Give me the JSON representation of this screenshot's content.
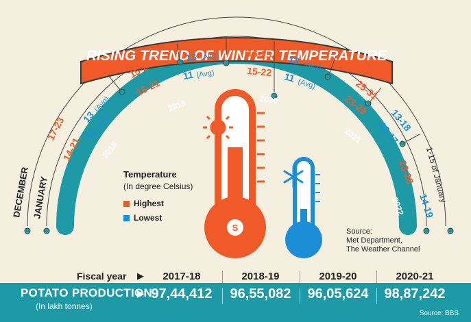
{
  "title": "RISING TREND OF WINTER TEMPERATURE",
  "arc_labels": {
    "years": [
      "2018",
      "2019",
      "2020",
      "2021",
      "2022"
    ],
    "month_labels": [
      "DECEMBER",
      "JANUARY",
      "1-15 of January"
    ],
    "december": [
      {
        "range": "17-23",
        "avg": "13",
        "avg_label": "(Avg)"
      },
      {
        "range": "15-24",
        "avg": "13",
        "avg_label": "(Avg)"
      },
      {
        "range": "16-25",
        "avg": "13",
        "avg_label": "(Avg)"
      },
      {
        "range": "25-31",
        "avg": "13-18",
        "avg_label": ""
      }
    ],
    "january": [
      {
        "range": "14-21",
        "avg": "11",
        "avg_label": "(Avg)"
      },
      {
        "range": "16-21",
        "avg": "11",
        "avg_label": "(Avg)"
      },
      {
        "range": "15-22",
        "avg": "11",
        "avg_label": "(Avg)"
      },
      {
        "range": "23-29",
        "avg": "12-17",
        "avg_label": ""
      }
    ],
    "jan_2022": {
      "range": "23-28",
      "avg": "14-19"
    }
  },
  "legend": {
    "title": "Temperature",
    "subtitle": "(In degree Celsius)",
    "highest": "Highest",
    "lowest": "Lowest"
  },
  "colors": {
    "highest": "#f05a28",
    "lowest": "#1a8fd8",
    "teal": "#1e9aa6",
    "background": "#f5efdf"
  },
  "source": [
    "Source:",
    "Met Department,",
    "The Weather Channel"
  ],
  "fiscal_year_label": "Fiscal year",
  "fiscal_years": [
    "2017-18",
    "2018-19",
    "2019-20",
    "2020-21"
  ],
  "potato_label": "POTATO PRODUCTION",
  "potato_unit": "(In lakh tonnes)",
  "potato_values": [
    "97,44,412",
    "96,55,082",
    "96,05,624",
    "98,87,242"
  ],
  "bottom_source": "Source: BBS",
  "icons": [
    "sun-icon",
    "snowflake-icon",
    "thermometer-hot-icon",
    "thermometer-cold-icon",
    "logo-s-icon"
  ]
}
